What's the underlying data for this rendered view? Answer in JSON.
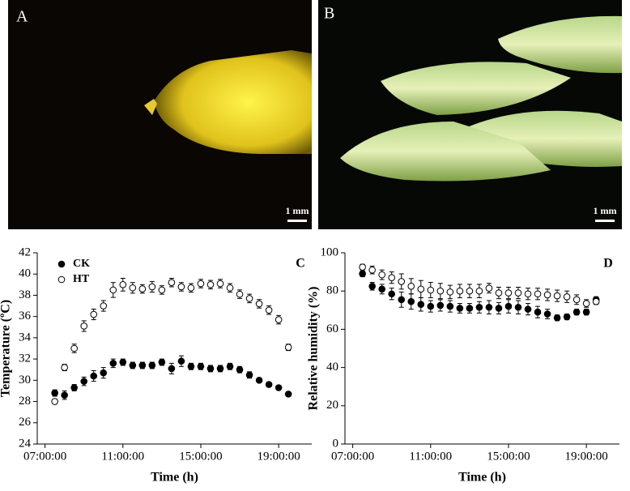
{
  "photos": [
    {
      "label": "A",
      "scale_bar": "1 mm"
    },
    {
      "label": "B",
      "scale_bar": "1 mm"
    }
  ],
  "chart_data": [
    {
      "type": "line",
      "label": "C",
      "xlabel": "Time (h)",
      "ylabel": "Temperature (ºC)",
      "x": [
        7.5,
        8,
        8.5,
        9,
        9.5,
        10,
        10.5,
        11,
        11.5,
        12,
        12.5,
        13,
        13.5,
        14,
        14.5,
        15,
        15.5,
        16,
        16.5,
        17,
        17.5,
        18,
        18.5,
        19,
        19.5
      ],
      "xlim": [
        6.6,
        20.7
      ],
      "xticks": [
        {
          "value": 7,
          "label": "07:00:00"
        },
        {
          "value": 11,
          "label": "11:00:00"
        },
        {
          "value": 15,
          "label": "15:00:00"
        },
        {
          "value": 19,
          "label": "19:00:00"
        }
      ],
      "ylim": [
        24,
        42
      ],
      "yticks": [
        24,
        26,
        28,
        30,
        32,
        34,
        36,
        38,
        40,
        42
      ],
      "legend": "top-left",
      "series": [
        {
          "name": "CK",
          "color": "#000000",
          "fill": "#000000",
          "values": [
            28.8,
            28.6,
            29.3,
            29.9,
            30.4,
            30.7,
            31.6,
            31.7,
            31.4,
            31.4,
            31.4,
            31.7,
            31.1,
            31.8,
            31.3,
            31.3,
            31.1,
            31.1,
            31.3,
            31.0,
            30.5,
            30.0,
            29.6,
            29.3,
            28.7
          ],
          "errors": [
            0.3,
            0.4,
            0.3,
            0.4,
            0.5,
            0.5,
            0.4,
            0.3,
            0.3,
            0.3,
            0.3,
            0.3,
            0.5,
            0.5,
            0.3,
            0.3,
            0.3,
            0.3,
            0.3,
            0.3,
            0.3,
            0.2,
            0.2,
            0.2,
            0.2
          ]
        },
        {
          "name": "HT",
          "color": "#000000",
          "fill": "#ffffff",
          "values": [
            28.0,
            31.2,
            33.0,
            35.1,
            36.2,
            37.0,
            38.5,
            39.0,
            38.7,
            38.6,
            38.8,
            38.5,
            39.2,
            38.8,
            38.7,
            39.1,
            39.0,
            39.1,
            38.7,
            38.1,
            37.7,
            37.2,
            36.6,
            35.7,
            33.1
          ],
          "errors": [
            0.2,
            0.3,
            0.4,
            0.5,
            0.5,
            0.5,
            0.7,
            0.6,
            0.5,
            0.4,
            0.5,
            0.4,
            0.4,
            0.4,
            0.4,
            0.4,
            0.4,
            0.4,
            0.4,
            0.4,
            0.4,
            0.4,
            0.4,
            0.4,
            0.3
          ]
        }
      ]
    },
    {
      "type": "line",
      "label": "D",
      "xlabel": "Time (h)",
      "ylabel": "Relative humidity (%)",
      "x": [
        7.5,
        8,
        8.5,
        9,
        9.5,
        10,
        10.5,
        11,
        11.5,
        12,
        12.5,
        13,
        13.5,
        14,
        14.5,
        15,
        15.5,
        16,
        16.5,
        17,
        17.5,
        18,
        18.5,
        19,
        19.5
      ],
      "xlim": [
        6.6,
        20.7
      ],
      "xticks": [
        {
          "value": 7,
          "label": "07:00:00"
        },
        {
          "value": 11,
          "label": "11:00:00"
        },
        {
          "value": 15,
          "label": "15:00:00"
        },
        {
          "value": 19,
          "label": "19:00:00"
        }
      ],
      "ylim": [
        0,
        100
      ],
      "yticks": [
        0,
        20,
        40,
        60,
        80,
        100
      ],
      "series": [
        {
          "color": "#000000",
          "fill": "#000000",
          "values": [
            89,
            82.5,
            81,
            78.5,
            75.5,
            74.5,
            73,
            72,
            72.5,
            72,
            71,
            71,
            71.5,
            71.5,
            71,
            72,
            71.5,
            70.5,
            69,
            68,
            66,
            66.5,
            69,
            69,
            75.5
          ],
          "errors": [
            1.5,
            2,
            2.5,
            3,
            4,
            4,
            3.5,
            3,
            3,
            3,
            2.5,
            2.5,
            3,
            3.5,
            3,
            3.5,
            3.5,
            3,
            3,
            2.5,
            1.5,
            1.5,
            1.5,
            1.5,
            1.5
          ]
        },
        {
          "color": "#000000",
          "fill": "#ffffff",
          "values": [
            92.5,
            91,
            88.5,
            87,
            85,
            82.5,
            81,
            80.5,
            80,
            79.5,
            80,
            80,
            80,
            81.5,
            79,
            79,
            79,
            78.5,
            78.5,
            78,
            77.5,
            77,
            75.5,
            73.5,
            74.5
          ],
          "errors": [
            1.5,
            2,
            2.5,
            3,
            4,
            4,
            4.5,
            4,
            4,
            3.5,
            3.5,
            3.5,
            3.5,
            2.5,
            3,
            3,
            3,
            3,
            3,
            3,
            3,
            3,
            2.5,
            2,
            1.5
          ]
        }
      ]
    }
  ]
}
